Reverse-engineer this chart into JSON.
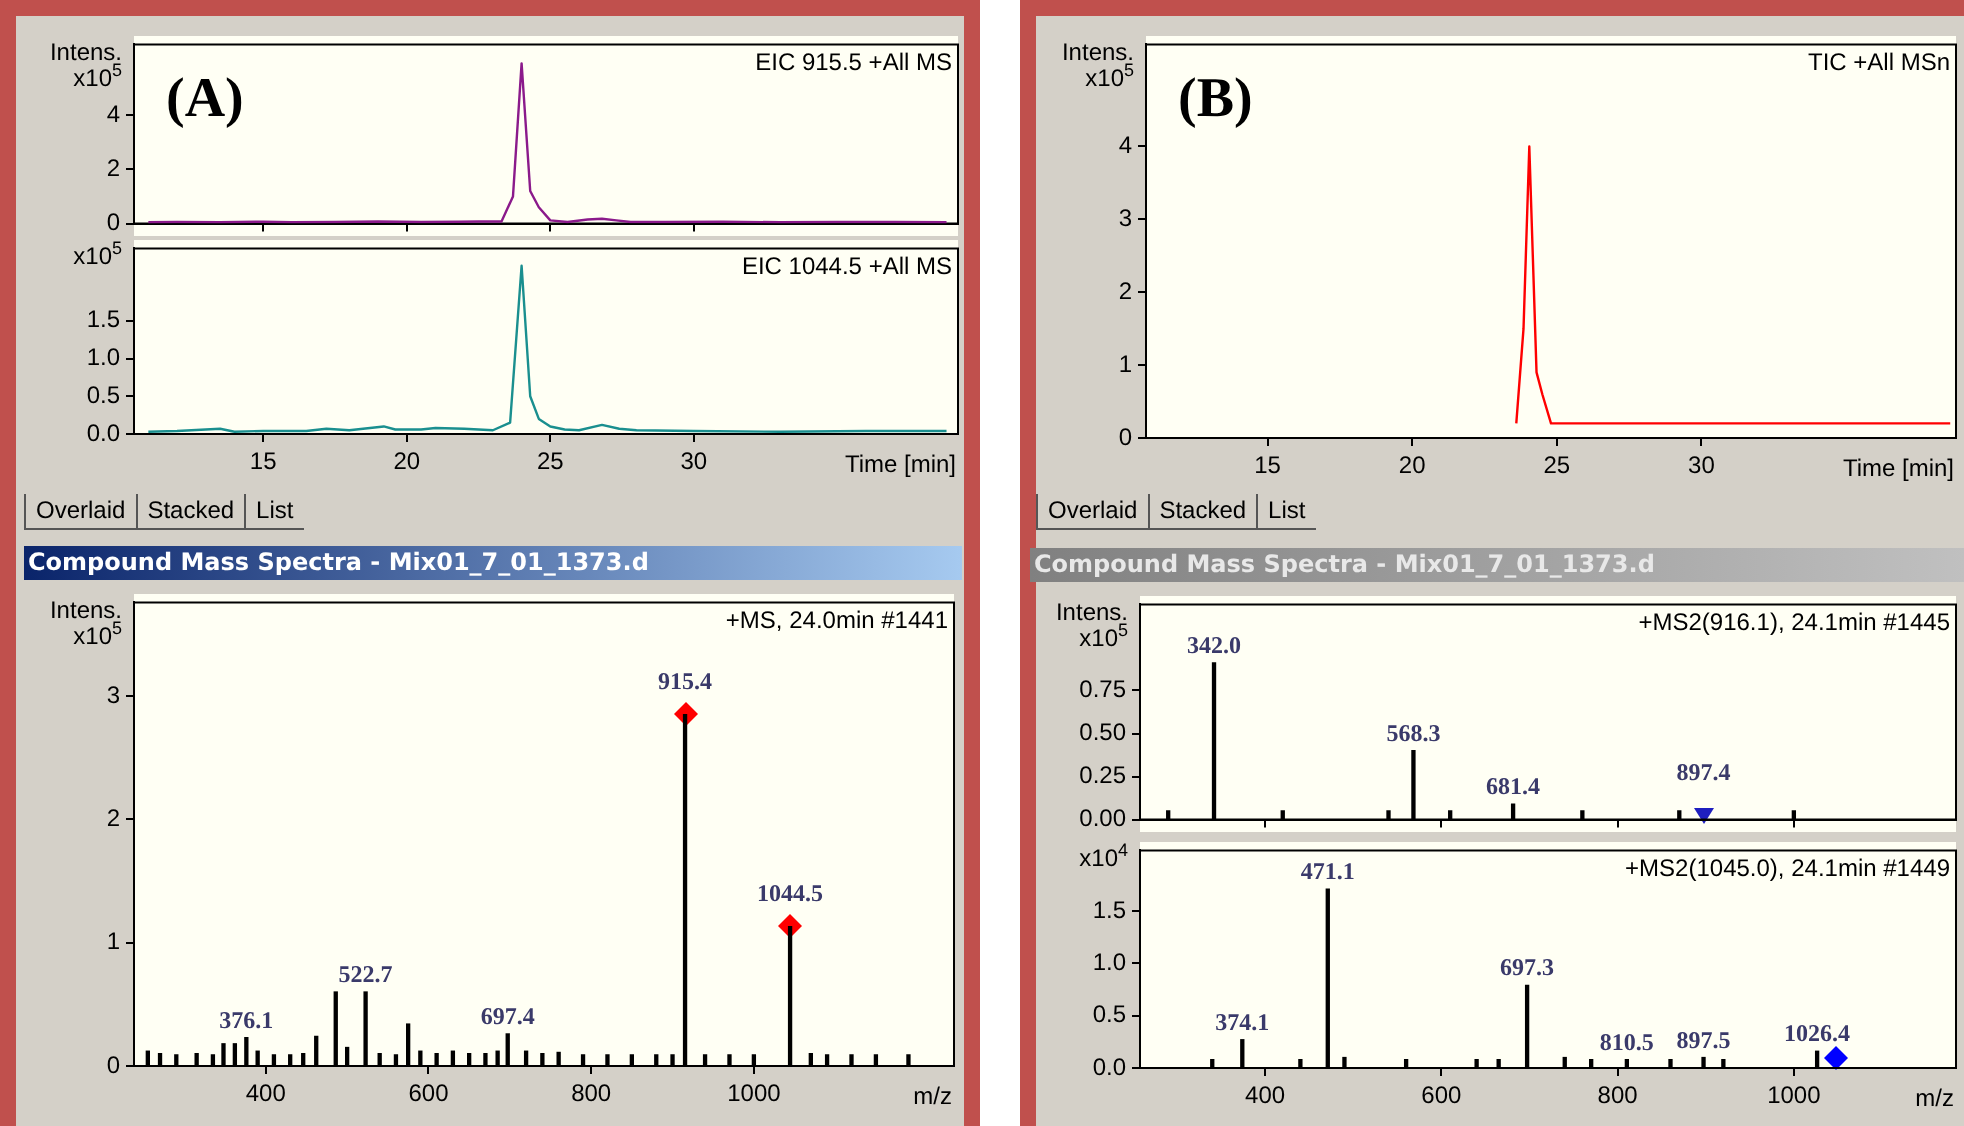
{
  "chart_data": [
    {
      "type": "line",
      "title": "EIC 915.5 +All MS",
      "ylabel": "Intens. x10$^{5}$",
      "annotations": [
        "(A)"
      ],
      "tick_labels": "y",
      "xlim": [
        10.5,
        39.2
      ],
      "ylim": [
        0,
        6.6
      ],
      "xticks": [
        15,
        20,
        25,
        30
      ],
      "yticks": [
        0,
        2,
        4
      ],
      "color": "#8b1a8b",
      "x": [
        11,
        12,
        13.5,
        15,
        16,
        17.5,
        19,
        20.5,
        21.8,
        22.5,
        23.3,
        23.7,
        24.0,
        24.3,
        24.6,
        25.0,
        25.6,
        26.3,
        26.8,
        27.3,
        27.8,
        29,
        31,
        33,
        35,
        37,
        38.8
      ],
      "values": [
        0.05,
        0.06,
        0.05,
        0.07,
        0.05,
        0.06,
        0.08,
        0.06,
        0.07,
        0.08,
        0.08,
        1.0,
        5.9,
        1.2,
        0.6,
        0.12,
        0.06,
        0.15,
        0.18,
        0.12,
        0.06,
        0.06,
        0.07,
        0.05,
        0.06,
        0.06,
        0.05
      ]
    },
    {
      "type": "line",
      "title": "EIC 1044.5 +All MS",
      "ylabel": "x10$^{5}$",
      "xlabel": "Time [min]",
      "annotations": [
        "Overlaid",
        "Stacked",
        "List"
      ],
      "xlim": [
        10.5,
        39.2
      ],
      "ylim": [
        0,
        2.46
      ],
      "xticks": [
        15,
        20,
        25,
        30
      ],
      "yticks": [
        {
          "value": 0,
          "label": "0.0"
        },
        {
          "value": 0.5,
          "label": "0.5"
        },
        {
          "value": 1,
          "label": "1.0"
        },
        {
          "value": 1.5,
          "label": "1.5"
        }
      ],
      "color": "#1a8f8f",
      "x": [
        11,
        12,
        13.5,
        14,
        15,
        16.5,
        17.2,
        18,
        19.2,
        19.6,
        20.5,
        21,
        22,
        23,
        23.6,
        24.0,
        24.3,
        24.6,
        25.0,
        25.5,
        26,
        26.8,
        27.4,
        28,
        30,
        33,
        36,
        38.8
      ],
      "values": [
        0.03,
        0.04,
        0.07,
        0.03,
        0.04,
        0.04,
        0.07,
        0.05,
        0.1,
        0.06,
        0.06,
        0.08,
        0.07,
        0.05,
        0.15,
        2.23,
        0.5,
        0.2,
        0.1,
        0.06,
        0.05,
        0.12,
        0.07,
        0.05,
        0.04,
        0.03,
        0.04,
        0.04
      ]
    },
    {
      "type": "bar",
      "title": "+MS, 24.0min #1441",
      "subtitle": "Compound Mass Spectra - Mix01_7_01_1373.d",
      "ylabel": "Intens. x10$^{5}$",
      "xlabel": "m/z",
      "xlim": [
        238,
        1246
      ],
      "ylim": [
        0,
        3.76
      ],
      "xticks": [
        400,
        600,
        800,
        1000
      ],
      "yticks": [
        0,
        1,
        2,
        3
      ],
      "annotations": [
        {
          "text": "915.4",
          "x": 915.4,
          "y": 2.85
        },
        {
          "text": "1044.5",
          "x": 1044.5,
          "y": 1.13
        },
        {
          "text": "522.7",
          "x": 522.7,
          "y": 0.6
        },
        {
          "text": "376.1",
          "x": 376.1,
          "y": 0.23
        },
        {
          "text": "697.4",
          "x": 697.4,
          "y": 0.26
        }
      ],
      "color": "#000000",
      "x": [
        255,
        270,
        290,
        315,
        335,
        348,
        362,
        376.1,
        390,
        410,
        430,
        446,
        462,
        486,
        500,
        522.7,
        540,
        560,
        575,
        590,
        610,
        630,
        650,
        670,
        685,
        697.4,
        720,
        740,
        760,
        790,
        820,
        850,
        880,
        900,
        915.4,
        940,
        970,
        1000,
        1044.5,
        1070,
        1090,
        1120,
        1150,
        1190
      ],
      "values": [
        0.12,
        0.1,
        0.09,
        0.1,
        0.09,
        0.18,
        0.18,
        0.23,
        0.12,
        0.09,
        0.09,
        0.1,
        0.24,
        0.6,
        0.15,
        0.6,
        0.1,
        0.09,
        0.34,
        0.12,
        0.1,
        0.12,
        0.1,
        0.1,
        0.12,
        0.26,
        0.12,
        0.1,
        0.11,
        0.09,
        0.09,
        0.09,
        0.09,
        0.09,
        2.85,
        0.09,
        0.09,
        0.09,
        1.13,
        0.1,
        0.09,
        0.09,
        0.09,
        0.09
      ]
    },
    {
      "type": "line",
      "title": "TIC +All MSn",
      "ylabel": "Intens. x10$^{5}$",
      "xlabel": "Time [min]",
      "annotations": [
        "(B)",
        "Overlaid",
        "Stacked",
        "List"
      ],
      "xlim": [
        10.8,
        38.8
      ],
      "ylim": [
        0,
        5.4
      ],
      "xticks": [
        15,
        20,
        25,
        30
      ],
      "yticks": [
        0,
        1,
        2,
        3,
        4
      ],
      "color": "#ff0000",
      "x": [
        23.6,
        23.85,
        24.05,
        24.3,
        24.5,
        24.8,
        25.5,
        30,
        35,
        38.6
      ],
      "values": [
        0.2,
        1.5,
        4.0,
        0.9,
        0.6,
        0.2,
        0.2,
        0.2,
        0.2,
        0.2
      ]
    },
    {
      "type": "bar",
      "title": "+MS2(916.1), 24.1min #1445",
      "subtitle": "Compound Mass Spectra - Mix01_7_01_1373.d",
      "ylabel": "Intens. x10$^{5}$",
      "tick_labels": "y",
      "xlim": [
        258,
        1184
      ],
      "ylim": [
        0,
        1.25
      ],
      "xticks": [
        400,
        600,
        800,
        1000
      ],
      "yticks": [
        {
          "value": 0,
          "label": "0.00"
        },
        {
          "value": 0.25,
          "label": "0.25"
        },
        {
          "value": 0.5,
          "label": "0.50"
        },
        {
          "value": 0.75,
          "label": "0.75"
        }
      ],
      "annotations": [
        {
          "text": "342.0",
          "x": 342.0,
          "y": 0.91
        },
        {
          "text": "568.3",
          "x": 568.3,
          "y": 0.4
        },
        {
          "text": "681.4",
          "x": 681.4,
          "y": 0.09
        },
        "897.4"
      ],
      "color": "#000000",
      "x": [
        290,
        342.0,
        420,
        540,
        568.3,
        610,
        681.4,
        760,
        870,
        1000
      ],
      "values": [
        0.05,
        0.91,
        0.05,
        0.05,
        0.4,
        0.05,
        0.09,
        0.05,
        0.05,
        0.05
      ]
    },
    {
      "type": "bar",
      "title": "+MS2(1045.0), 24.1min #1449",
      "ylabel": "x10$^{4}$",
      "xlabel": "m/z",
      "xlim": [
        258,
        1184
      ],
      "ylim": [
        0,
        2.08
      ],
      "xticks": [
        400,
        600,
        800,
        1000
      ],
      "yticks": [
        {
          "value": 0,
          "label": "0.0"
        },
        {
          "value": 0.5,
          "label": "0.5"
        },
        {
          "value": 1,
          "label": "1.0"
        },
        {
          "value": 1.5,
          "label": "1.5"
        }
      ],
      "annotations": [
        {
          "text": "471.1",
          "x": 471.1,
          "y": 1.71
        },
        {
          "text": "697.3",
          "x": 697.3,
          "y": 0.79
        },
        {
          "text": "374.1",
          "x": 374.1,
          "y": 0.27
        },
        {
          "text": "810.5",
          "x": 810.5,
          "y": 0.08
        },
        {
          "text": "897.5",
          "x": 897.5,
          "y": 0.1
        },
        {
          "text": "1026.4",
          "x": 1026.4,
          "y": 0.16
        }
      ],
      "color": "#000000",
      "x": [
        340,
        374.1,
        440,
        471.1,
        490,
        560,
        640,
        665,
        697.3,
        740,
        770,
        810.5,
        860,
        897.5,
        920,
        1026.4
      ],
      "values": [
        0.08,
        0.27,
        0.08,
        1.71,
        0.1,
        0.08,
        0.08,
        0.08,
        0.79,
        0.1,
        0.08,
        0.08,
        0.08,
        0.1,
        0.08,
        0.16
      ]
    }
  ]
}
